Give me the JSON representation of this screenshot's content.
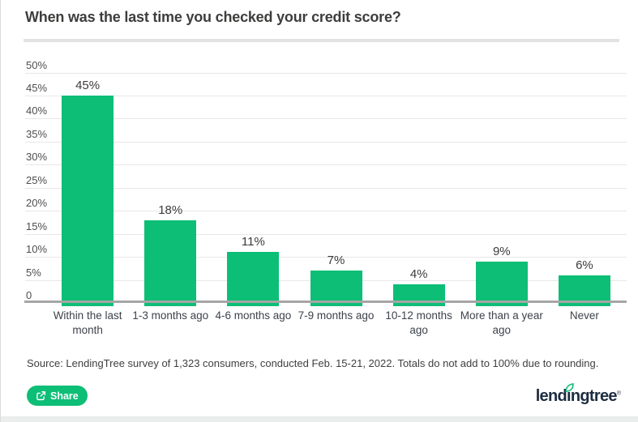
{
  "page": {
    "title": "When was the last time you checked your credit score?"
  },
  "chart_data": {
    "type": "bar",
    "title": "When was the last time you checked your credit score?",
    "categories": [
      "Within the last\nmonth",
      "1-3 months ago",
      "4-6 months ago",
      "7-9 months ago",
      "10-12 months\nago",
      "More than a year\nago",
      "Never"
    ],
    "values": [
      45,
      18,
      11,
      7,
      4,
      9,
      6
    ],
    "value_labels": [
      "45%",
      "18%",
      "11%",
      "7%",
      "4%",
      "9%",
      "6%"
    ],
    "xlabel": "",
    "ylabel": "",
    "ylim": [
      0,
      50
    ],
    "ytick_step": 5,
    "ytick_labels": [
      "50%",
      "45%",
      "40%",
      "35%",
      "30%",
      "25%",
      "20%",
      "15%",
      "10%",
      "5%",
      "0"
    ],
    "grid": true,
    "legend": false,
    "bar_color": "#0dbe76"
  },
  "source_note": "Source: LendingTree survey of 1,323 consumers, conducted Feb. 15-21, 2022. Totals do not add to 100% due to rounding.",
  "footer": {
    "share_button_label": "Share",
    "logo": {
      "text": "lendingtree",
      "part_before_leaf": "lend",
      "leaf_letter": "ı",
      "part_after_leaf": "ngtree",
      "registered_mark": "®"
    }
  },
  "colors": {
    "accent_green": "#0dbe76",
    "logo_navy": "#1c2d40",
    "gridline": "#e7e7e7",
    "axis_line": "#a6a6a6",
    "title_divider": "#e3e3e3",
    "bottom_band": "#e9edec"
  }
}
